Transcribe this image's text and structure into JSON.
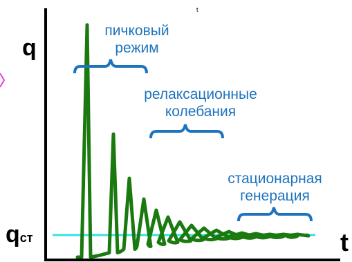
{
  "axes": {
    "y_label": "q",
    "x_label": "t",
    "qst_main": "q",
    "qst_sub": "ст",
    "stray_mark": "t"
  },
  "regions": {
    "peak": [
      "пичковый",
      "режим"
    ],
    "relax": [
      "релаксационные",
      "колебания"
    ],
    "stationary": [
      "стационарная",
      "генерация"
    ]
  },
  "colors": {
    "curve": "#1a7a10",
    "steady_line": "#33e0e8",
    "brace": "#1e73be",
    "text": "#1e73be",
    "axis": "#000000",
    "marker": "#e040e0"
  }
}
